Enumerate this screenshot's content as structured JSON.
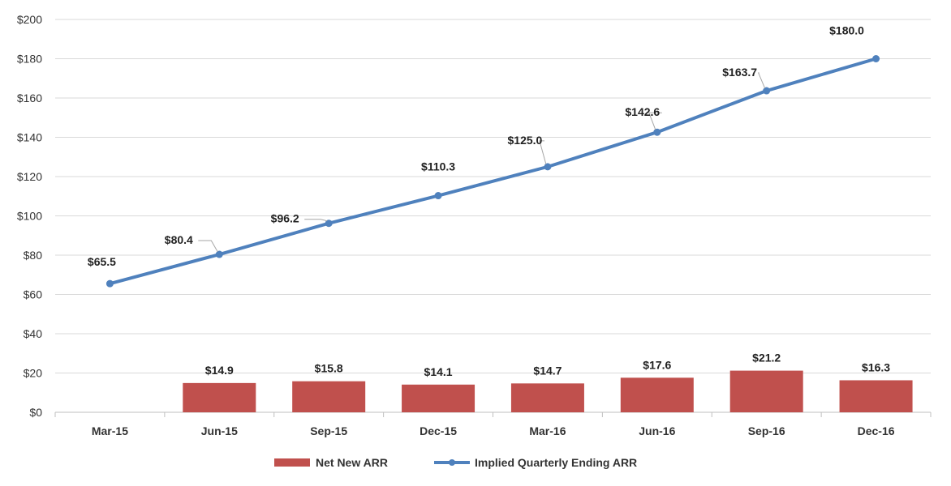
{
  "chart_data": {
    "type": "bar+line",
    "categories": [
      "Mar-15",
      "Jun-15",
      "Sep-15",
      "Dec-15",
      "Mar-16",
      "Jun-16",
      "Sep-16",
      "Dec-16"
    ],
    "series": [
      {
        "name": "Net New ARR",
        "type": "bar",
        "color": "#c0504d",
        "values": [
          null,
          14.9,
          15.8,
          14.1,
          14.7,
          17.6,
          21.2,
          16.3
        ],
        "labels": [
          "",
          "$14.9",
          "$15.8",
          "$14.1",
          "$14.7",
          "$17.6",
          "$21.2",
          "$16.3"
        ]
      },
      {
        "name": "Implied Quarterly Ending ARR",
        "type": "line",
        "color": "#4f81bd",
        "values": [
          65.5,
          80.4,
          96.2,
          110.3,
          125.0,
          142.6,
          163.7,
          180.0
        ],
        "labels": [
          "$65.5",
          "$80.4",
          "$96.2",
          "$110.3",
          "$125.0",
          "$142.6",
          "$163.7",
          "$180.0"
        ]
      }
    ],
    "ylim": [
      0,
      200
    ],
    "yticks": [
      0,
      20,
      40,
      60,
      80,
      100,
      120,
      140,
      160,
      180,
      200
    ],
    "ytick_labels": [
      "$0",
      "$20",
      "$40",
      "$60",
      "$80",
      "$100",
      "$120",
      "$140",
      "$160",
      "$180",
      "$200"
    ],
    "grid": true,
    "legend_position": "bottom-center",
    "title": "",
    "xlabel": "",
    "ylabel": ""
  }
}
